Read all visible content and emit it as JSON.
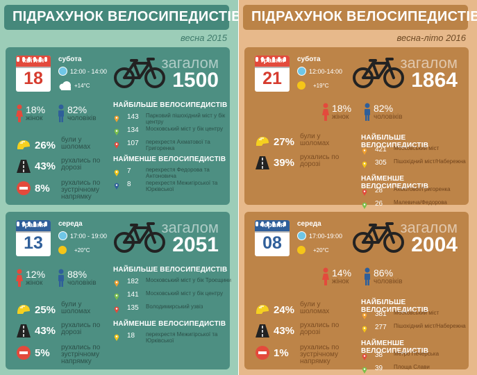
{
  "left": {
    "title": "ПІДРАХУНОК ВЕЛОСИПЕДИСТІВ",
    "season": "весна 2015",
    "cards": [
      {
        "month": "квітня",
        "day": "18",
        "weekday": "субота",
        "time": "12:00 - 14:00",
        "temp": "+14°C",
        "weather": "cloud",
        "total_label": "загалом",
        "total": "1500",
        "female_pct": "18%",
        "female_label": "жінок",
        "male_pct": "82%",
        "male_label": "чоловіків",
        "helmet_pct": "26%",
        "helmet_label": "були у шоломах",
        "road_pct": "43%",
        "road_label": "рухались по дорозі",
        "wrong_pct": "8%",
        "wrong_label": "рухались по зустрічному напрямку",
        "most_title": "НАЙБІЛЬШЕ ВЕЛОСИПЕДИСТІВ",
        "most": [
          {
            "value": "143",
            "place": "Парковий пішохідний міст у бік центру",
            "color": "#f0a030"
          },
          {
            "value": "134",
            "place": "Московський міст у бік центру",
            "color": "#7cc04a"
          },
          {
            "value": "107",
            "place": "перехрестя Ахматової та Григоренка",
            "color": "#e34a3c"
          }
        ],
        "least_title": "НАЙМЕНШЕ ВЕЛОСИПЕДИСТІВ",
        "least": [
          {
            "value": "7",
            "place": "перехрестя Федорова та Антоновича",
            "color": "#f5c518"
          },
          {
            "value": "8",
            "place": "перехрестя Межигірської та Юрківської",
            "color": "#2f5f9a"
          }
        ]
      },
      {
        "month": "травня",
        "day": "13",
        "weekday": "середа",
        "time": "17:00 - 19:00",
        "temp": "+20°C",
        "weather": "sun",
        "total_label": "загалом",
        "total": "2051",
        "female_pct": "12%",
        "female_label": "жінок",
        "male_pct": "88%",
        "male_label": "чоловіків",
        "helmet_pct": "25%",
        "helmet_label": "були у шоломах",
        "road_pct": "43%",
        "road_label": "рухались по дорозі",
        "wrong_pct": "5%",
        "wrong_label": "рухались по зустрічному напрямку",
        "most_title": "НАЙБІЛЬШЕ ВЕЛОСИПЕДИСТІВ",
        "most": [
          {
            "value": "182",
            "place": "Московський міст у бік Троєщини",
            "color": "#f0a030"
          },
          {
            "value": "141",
            "place": "Московський міст у бік центру",
            "color": "#7cc04a"
          },
          {
            "value": "135",
            "place": "Володимирський узвіз",
            "color": "#e34a3c"
          }
        ],
        "least_title": "НАЙМЕНШЕ ВЕЛОСИПЕДИСТІВ",
        "least": [
          {
            "value": "18",
            "place": "перехрестя Межигірської та Юрківської",
            "color": "#f5c518"
          }
        ]
      }
    ]
  },
  "right": {
    "title": "ПІДРАХУНОК ВЕЛОСИПЕДИСТІВ",
    "season": "весна-літо 2016",
    "cards": [
      {
        "month": "травня",
        "day": "21",
        "weekday": "субота",
        "time": "12:00-14:00",
        "temp": "+19°C",
        "weather": "sun",
        "total_label": "загалом",
        "total": "1864",
        "female_pct": "18%",
        "female_label": "жінок",
        "male_pct": "82%",
        "male_label": "чоловіків",
        "helmet_pct": "27%",
        "helmet_label": "були у шоломах",
        "road_pct": "39%",
        "road_label": "рухались по дорозі",
        "most_title": "НАЙБІЛЬШЕ ВЕЛОСИПЕДИСТІВ",
        "most": [
          {
            "value": "421",
            "place": "Московський міст",
            "color": "#f0a030"
          },
          {
            "value": "305",
            "place": "Пішохідний міст/Набережна",
            "color": "#f5c518"
          }
        ],
        "least_title": "НАЙМЕНШЕ ВЕЛОСИПЕДИСТІВ",
        "least": [
          {
            "value": "28",
            "place": "Ахматової/Григоренка",
            "color": "#e34a3c"
          },
          {
            "value": "26",
            "place": "Малевича/Федорова",
            "color": "#7cc04a"
          }
        ]
      },
      {
        "month": "червня",
        "day": "08",
        "weekday": "середа",
        "time": "17:00-19:00",
        "temp": "+20°C",
        "weather": "sun",
        "total_label": "загалом",
        "total": "2004",
        "female_pct": "14%",
        "female_label": "жінок",
        "male_pct": "86%",
        "male_label": "чоловіків",
        "helmet_pct": "24%",
        "helmet_label": "були у шоломах",
        "road_pct": "43%",
        "road_label": "рухались по дорозі",
        "wrong_pct": "1%",
        "wrong_label": "рухались по зустрічному напрямку",
        "most_title": "НАЙБІЛЬШЕ ВЕЛОСИПЕДИСТІВ",
        "most": [
          {
            "value": "381",
            "place": "Московський міст",
            "color": "#f0a030"
          },
          {
            "value": "277",
            "place": "Пішохідний міст/Набережна",
            "color": "#f5c518"
          }
        ],
        "least_title": "НАЙМЕНШЕ ВЕЛОСИПЕДИСТІВ",
        "least": [
          {
            "value": "38",
            "place": "Метро Печерська",
            "color": "#e34a3c"
          },
          {
            "value": "39",
            "place": "Площа Слави",
            "color": "#7cc04a"
          }
        ]
      }
    ]
  }
}
